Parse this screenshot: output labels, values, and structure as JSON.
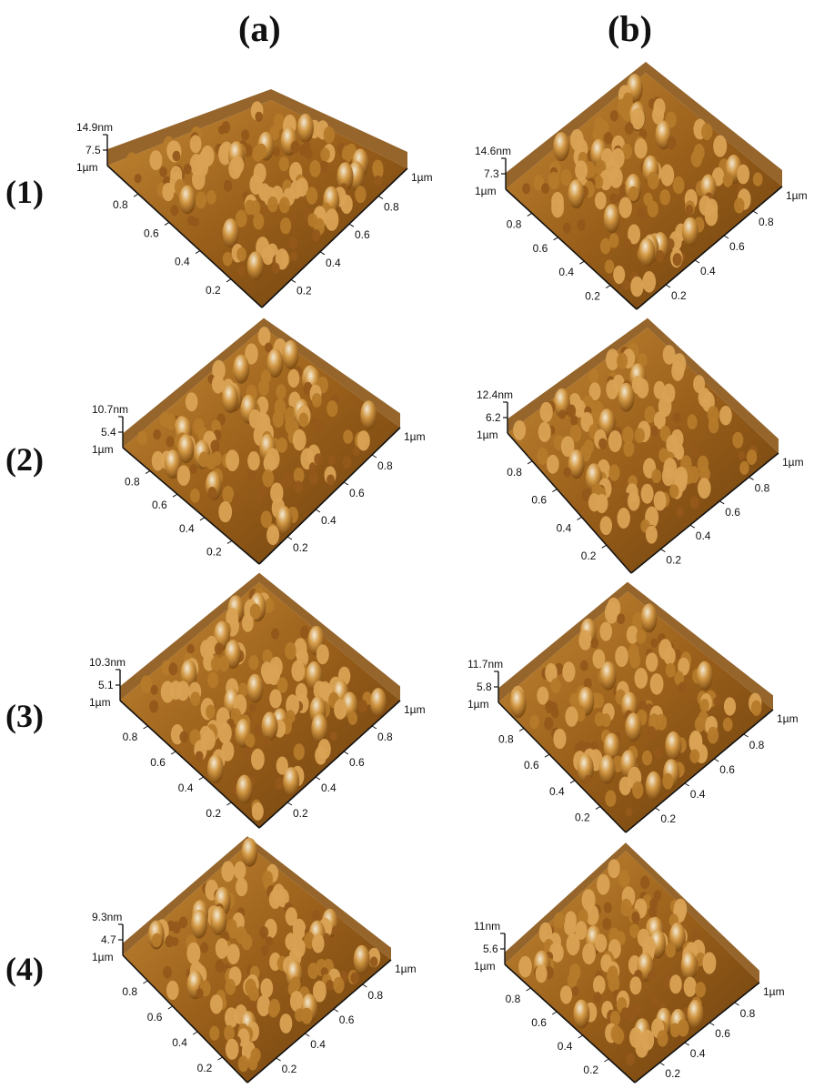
{
  "columns": [
    "(a)",
    "(b)"
  ],
  "rows": [
    "(1)",
    "(2)",
    "(3)",
    "(4)"
  ],
  "panels": [
    {
      "col": "a",
      "row": "1",
      "z_max": "14.9nm",
      "z_mid": "7.5"
    },
    {
      "col": "b",
      "row": "1",
      "z_max": "14.6nm",
      "z_mid": "7.3"
    },
    {
      "col": "a",
      "row": "2",
      "z_max": "10.7nm",
      "z_mid": "5.4"
    },
    {
      "col": "b",
      "row": "2",
      "z_max": "12.4nm",
      "z_mid": "6.2"
    },
    {
      "col": "a",
      "row": "3",
      "z_max": "10.3nm",
      "z_mid": "5.1"
    },
    {
      "col": "b",
      "row": "3",
      "z_max": "11.7nm",
      "z_mid": "5.8"
    },
    {
      "col": "a",
      "row": "4",
      "z_max": "9.3nm",
      "z_mid": "4.7"
    },
    {
      "col": "b",
      "row": "4",
      "z_max": "11nm",
      "z_mid": "5.6"
    }
  ],
  "axis": {
    "corner_label": "1µm",
    "ticks": [
      "0.2",
      "0.4",
      "0.6",
      "0.8"
    ],
    "end_label": "1µm"
  },
  "colors": {
    "surface_dark": "#6b3f0c",
    "surface_mid": "#b07322",
    "surface_light": "#e6c27a",
    "peak": "#f4ead6"
  }
}
